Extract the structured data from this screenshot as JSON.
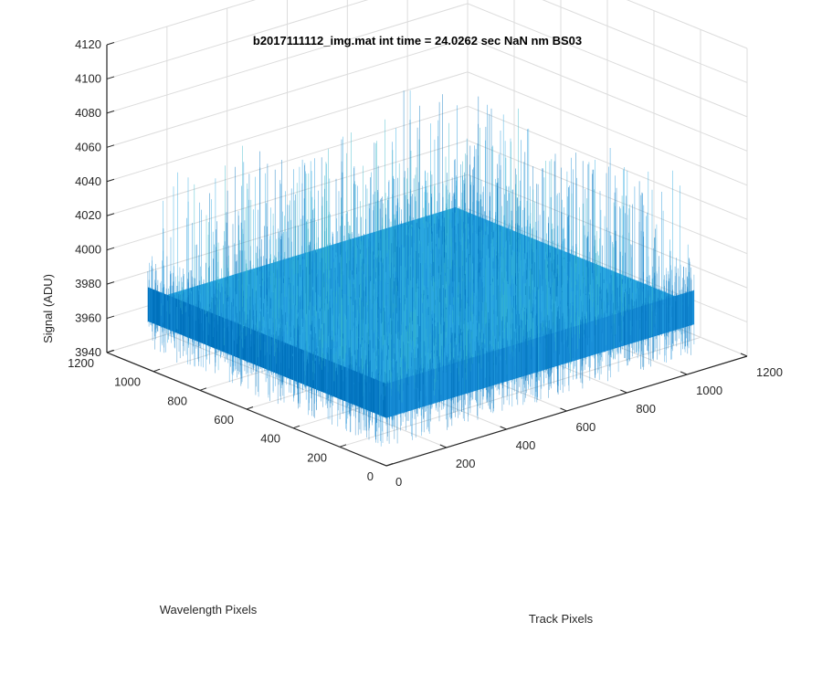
{
  "chart_data": {
    "type": "surface",
    "title": "b2017111112_img.mat int time = 24.0262 sec  NaN nm BS03",
    "xlabel": "Track Pixels",
    "ylabel": "Wavelength Pixels",
    "zlabel": "Signal (ADU)",
    "xlim": [
      0,
      1200
    ],
    "ylim": [
      0,
      1200
    ],
    "zlim": [
      3940,
      4120
    ],
    "xticks": [
      "0",
      "200",
      "400",
      "600",
      "800",
      "1000",
      "1200"
    ],
    "yticks": [
      "0",
      "200",
      "400",
      "600",
      "800",
      "1000",
      "1200"
    ],
    "zticks": [
      "3940",
      "3960",
      "3980",
      "4000",
      "4020",
      "4040",
      "4060",
      "4080",
      "4100",
      "4120"
    ],
    "grid": true,
    "surface": {
      "x_range": [
        0,
        1024
      ],
      "y_range": [
        0,
        1024
      ],
      "z_mean": 3980,
      "z_min": 3955,
      "z_max": 4060,
      "colors": [
        "#0072bd",
        "#1a8fd8",
        "#2aa7e0",
        "#35b5c9"
      ]
    }
  }
}
